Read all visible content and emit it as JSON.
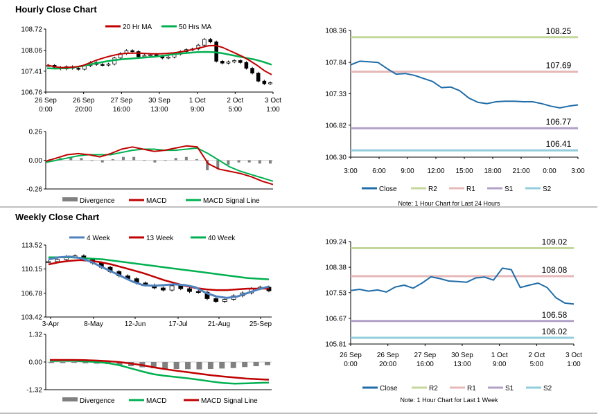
{
  "sections": {
    "hourly_title": "Hourly Close Chart",
    "weekly_title": "Weekly Close Chart"
  },
  "colors": {
    "ma20": "#c00000",
    "ma50": "#00b050",
    "wk4": "#4f81bd",
    "wk13": "#c00000",
    "wk40": "#00b050",
    "close": "#1f6ca8",
    "r2": "#c4d79b",
    "r1": "#e6b8b7",
    "s1": "#b1a0c7",
    "s2": "#92cddc",
    "divergence": "#808080",
    "macd_red": "#c00000",
    "signal_green": "#00b050"
  },
  "chart_data": [
    {
      "id": "hourly-candle",
      "type": "line",
      "title": "Hourly candles with moving averages",
      "legend": [
        "20 Hr MA",
        "50 Hrs MA"
      ],
      "y_ticks": [
        "108.72",
        "108.06",
        "107.41",
        "106.76"
      ],
      "ylim": [
        106.76,
        108.72
      ],
      "x_labels": [
        [
          "26 Sep",
          "0:00"
        ],
        [
          "26 Sep",
          "20:00"
        ],
        [
          "27 Sep",
          "16:00"
        ],
        [
          "30 Sep",
          "13:00"
        ],
        [
          "1 Oct",
          "9:00"
        ],
        [
          "2 Oct",
          "5:00"
        ],
        [
          "3 Oct",
          "1:00"
        ]
      ],
      "price": [
        107.59,
        107.53,
        107.48,
        107.55,
        107.5,
        107.47,
        107.58,
        107.68,
        107.62,
        107.6,
        107.63,
        107.82,
        107.96,
        108.05,
        108.02,
        107.86,
        107.9,
        107.92,
        107.88,
        107.82,
        107.85,
        107.94,
        108.02,
        108.08,
        108.1,
        108.22,
        108.4,
        108.32,
        107.72,
        107.66,
        107.7,
        107.74,
        107.68,
        107.5,
        107.35,
        107.1,
        107.02,
        107.05
      ],
      "ma20": [
        107.6,
        107.55,
        107.52,
        107.53,
        107.54,
        107.58,
        107.66,
        107.75,
        107.82,
        107.88,
        107.93,
        107.96,
        107.97,
        107.97,
        107.96,
        107.95,
        107.95,
        107.96,
        107.98,
        108.01,
        108.05,
        108.1,
        108.15,
        108.2,
        108.21,
        108.15,
        108.05,
        107.95,
        107.85,
        107.72,
        107.58,
        107.42,
        107.3
      ],
      "ma50": [
        107.5,
        107.49,
        107.5,
        107.52,
        107.56,
        107.61,
        107.66,
        107.71,
        107.75,
        107.78,
        107.8,
        107.82,
        107.84,
        107.86,
        107.89,
        107.93,
        107.96,
        107.98,
        108.0,
        108.01,
        108.0,
        107.97,
        107.92,
        107.87,
        107.82,
        107.77,
        107.7,
        107.61
      ]
    },
    {
      "id": "hourly-macd",
      "type": "line",
      "y_ticks": [
        "0.26",
        "0.00",
        "-0.26"
      ],
      "ylim": [
        -0.26,
        0.26
      ],
      "legend": [
        "Divergence",
        "MACD",
        "MACD Signal Line"
      ],
      "macd": [
        -0.01,
        0.02,
        0.05,
        0.06,
        0.05,
        0.03,
        0.06,
        0.1,
        0.12,
        0.1,
        0.08,
        0.09,
        0.11,
        0.13,
        0.12,
        -0.03,
        -0.08,
        -0.1,
        -0.12,
        -0.15,
        -0.19,
        -0.22
      ],
      "signal": [
        -0.02,
        0.0,
        0.02,
        0.04,
        0.05,
        0.05,
        0.05,
        0.07,
        0.09,
        0.1,
        0.1,
        0.09,
        0.09,
        0.1,
        0.11,
        0.06,
        0.0,
        -0.06,
        -0.1,
        -0.13,
        -0.16,
        -0.19
      ],
      "divergence": [
        0.01,
        0.02,
        0.03,
        0.02,
        0.0,
        -0.02,
        0.01,
        0.03,
        0.03,
        0.0,
        -0.02,
        0.0,
        0.02,
        0.03,
        0.01,
        -0.09,
        -0.08,
        -0.04,
        -0.02,
        -0.02,
        -0.03,
        -0.03
      ]
    },
    {
      "id": "hourly-close-pivots",
      "type": "line",
      "y_ticks": [
        "108.36",
        "107.84",
        "107.33",
        "106.82",
        "106.30"
      ],
      "ylim": [
        106.3,
        108.36
      ],
      "x_labels": [
        "3:00",
        "6:00",
        "9:00",
        "12:00",
        "15:00",
        "18:00",
        "21:00",
        "0:00",
        "3:00"
      ],
      "close": [
        107.8,
        107.86,
        107.85,
        107.84,
        107.74,
        107.65,
        107.66,
        107.63,
        107.58,
        107.53,
        107.43,
        107.44,
        107.38,
        107.26,
        107.19,
        107.17,
        107.2,
        107.21,
        107.21,
        107.2,
        107.2,
        107.17,
        107.13,
        107.1,
        107.13,
        107.15
      ],
      "levels": [
        {
          "name": "R2",
          "value": 108.25,
          "label": "108.25"
        },
        {
          "name": "R1",
          "value": 107.69,
          "label": "107.69"
        },
        {
          "name": "S1",
          "value": 106.77,
          "label": "106.77"
        },
        {
          "name": "S2",
          "value": 106.41,
          "label": "106.41"
        }
      ],
      "legend": [
        "Close",
        "R2",
        "R1",
        "S1",
        "S2"
      ],
      "note": "Note: 1 Hour Chart for Last 24 Hours"
    },
    {
      "id": "weekly-candle",
      "type": "line",
      "legend": [
        "4 Week",
        "13 Week",
        "40 Week"
      ],
      "y_ticks": [
        "113.52",
        "110.15",
        "106.78",
        "103.42"
      ],
      "ylim": [
        103.42,
        113.52
      ],
      "x_labels": [
        "3-Apr",
        "8-May",
        "12-Jun",
        "17-Jul",
        "21-Aug",
        "25-Sep"
      ],
      "price": [
        111.2,
        111.5,
        111.9,
        112.0,
        111.5,
        111.0,
        110.4,
        109.8,
        109.2,
        108.8,
        108.2,
        107.9,
        107.5,
        107.2,
        107.8,
        107.4,
        107.0,
        106.9,
        106.0,
        105.6,
        105.9,
        106.4,
        106.8,
        107.4,
        107.6,
        107.1
      ],
      "wk4": [
        111.5,
        111.8,
        111.9,
        111.7,
        111.2,
        110.5,
        109.8,
        109.1,
        108.4,
        107.9,
        107.8,
        107.9,
        108.0,
        107.9,
        107.6,
        106.8,
        106.3,
        106.1,
        106.3,
        106.8,
        107.3,
        107.7
      ],
      "wk13": [
        110.8,
        111.1,
        111.3,
        111.4,
        111.3,
        111.1,
        110.8,
        110.4,
        110.0,
        109.6,
        109.1,
        108.6,
        108.2,
        107.8,
        107.5,
        107.3,
        107.2,
        107.2,
        107.3,
        107.4,
        107.4,
        107.4
      ],
      "wk40": [
        111.8,
        111.8,
        111.8,
        111.7,
        111.6,
        111.5,
        111.3,
        111.1,
        110.9,
        110.7,
        110.5,
        110.3,
        110.1,
        109.9,
        109.7,
        109.5,
        109.3,
        109.1,
        108.9,
        108.8,
        108.7
      ]
    },
    {
      "id": "weekly-macd",
      "type": "line",
      "y_ticks": [
        "1.32",
        "0.00",
        "-1.32"
      ],
      "ylim": [
        -1.32,
        1.32
      ],
      "legend": [
        "Divergence",
        "MACD",
        "MACD Signal Line"
      ],
      "macd": [
        0.05,
        0.06,
        0.06,
        0.03,
        0.0,
        -0.05,
        -0.15,
        -0.3,
        -0.45,
        -0.58,
        -0.66,
        -0.72,
        -0.78,
        -0.85,
        -0.93,
        -1.0,
        -1.03,
        -1.02,
        -1.0,
        -0.98
      ],
      "signal": [
        0.1,
        0.1,
        0.1,
        0.09,
        0.07,
        0.04,
        0.0,
        -0.07,
        -0.15,
        -0.25,
        -0.34,
        -0.42,
        -0.49,
        -0.56,
        -0.63,
        -0.69,
        -0.74,
        -0.79,
        -0.82,
        -0.84
      ],
      "divergence": [
        -0.05,
        -0.05,
        -0.04,
        -0.06,
        -0.08,
        -0.1,
        -0.15,
        -0.2,
        -0.25,
        -0.3,
        -0.32,
        -0.33,
        -0.34,
        -0.35,
        -0.33,
        -0.31,
        -0.29,
        -0.24,
        -0.2,
        -0.15
      ]
    },
    {
      "id": "weekly-close-pivots",
      "type": "line",
      "y_ticks": [
        "109.24",
        "108.38",
        "107.53",
        "106.67",
        "105.81"
      ],
      "ylim": [
        105.81,
        109.24
      ],
      "x_labels": [
        [
          "26 Sep",
          "0:00"
        ],
        [
          "26 Sep",
          "20:00"
        ],
        [
          "27 Sep",
          "16:00"
        ],
        [
          "30 Sep",
          "13:00"
        ],
        [
          "1 Oct",
          "9:00"
        ],
        [
          "2 Oct",
          "5:00"
        ],
        [
          "3 Oct",
          "1:00"
        ]
      ],
      "close": [
        107.6,
        107.64,
        107.58,
        107.62,
        107.55,
        107.72,
        107.78,
        107.68,
        107.85,
        108.06,
        108.0,
        107.92,
        107.9,
        107.88,
        108.02,
        108.05,
        107.95,
        108.35,
        108.3,
        107.7,
        107.78,
        107.85,
        107.7,
        107.36,
        107.18,
        107.15
      ],
      "levels": [
        {
          "name": "R2",
          "value": 109.02,
          "label": "109.02"
        },
        {
          "name": "R1",
          "value": 108.08,
          "label": "108.08"
        },
        {
          "name": "S1",
          "value": 106.58,
          "label": "106.58"
        },
        {
          "name": "S2",
          "value": 106.02,
          "label": "106.02"
        }
      ],
      "legend": [
        "Close",
        "R2",
        "R1",
        "S1",
        "S2"
      ],
      "note": "Note: 1 Hour Chart for Last 1 Week"
    }
  ]
}
